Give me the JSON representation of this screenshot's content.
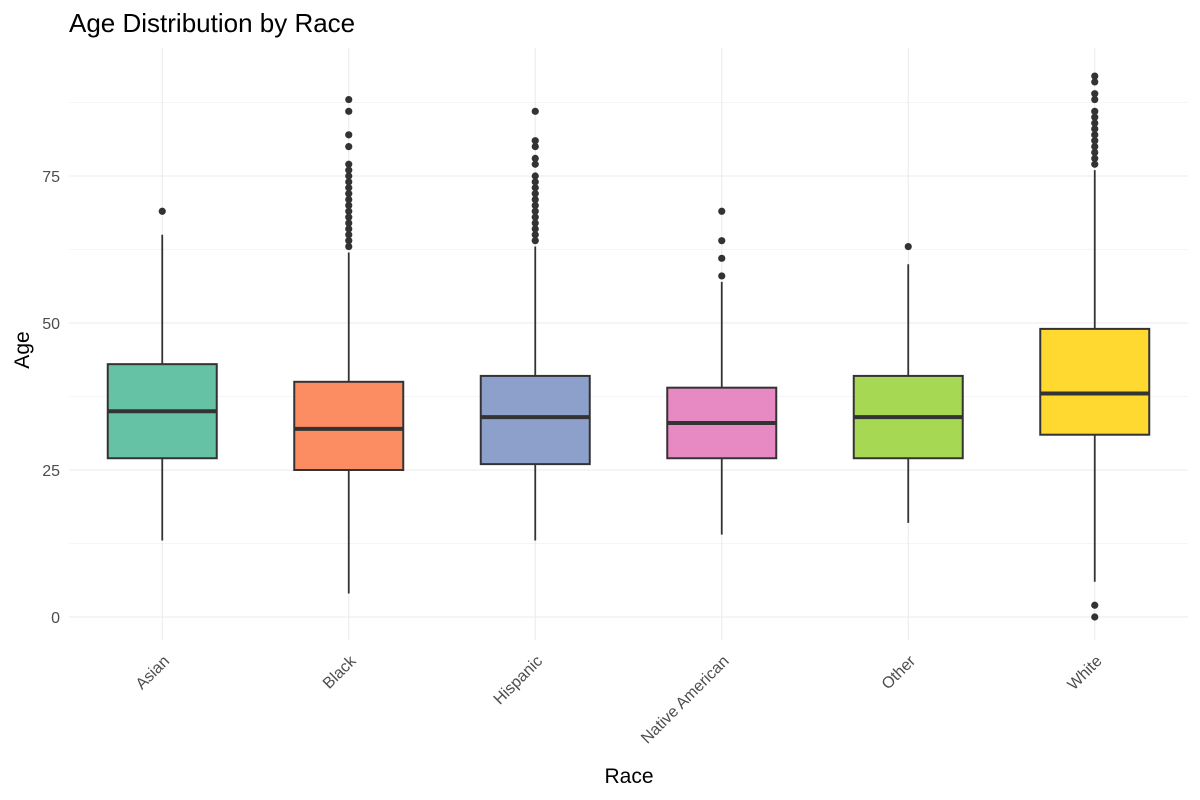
{
  "chart_data": {
    "type": "boxplot",
    "title": "Age Distribution by Race",
    "xlabel": "Race",
    "ylabel": "Age",
    "ylim": [
      -4,
      97
    ],
    "yticks": [
      0,
      25,
      50,
      75
    ],
    "grid": true,
    "legend": "none",
    "categories": [
      "Asian",
      "Black",
      "Hispanic",
      "Native American",
      "Other",
      "White"
    ],
    "boxes": [
      {
        "category": "Asian",
        "color": "#66c2a5",
        "whisker_low": 13,
        "q1": 27,
        "median": 35,
        "q3": 43,
        "whisker_high": 65,
        "outliers": [
          69
        ]
      },
      {
        "category": "Black",
        "color": "#fc8d62",
        "whisker_low": 4,
        "q1": 25,
        "median": 32,
        "q3": 40,
        "whisker_high": 62,
        "outliers": [
          63,
          64,
          65,
          66,
          67,
          68,
          69,
          70,
          71,
          72,
          73,
          74,
          75,
          76,
          77,
          80,
          82,
          86,
          88
        ]
      },
      {
        "category": "Hispanic",
        "color": "#8da0cb",
        "whisker_low": 13,
        "q1": 26,
        "median": 34,
        "q3": 41,
        "whisker_high": 63,
        "outliers": [
          64,
          65,
          66,
          67,
          68,
          69,
          70,
          71,
          72,
          73,
          74,
          75,
          77,
          78,
          80,
          81,
          86
        ]
      },
      {
        "category": "Native American",
        "color": "#e78ac3",
        "whisker_low": 14,
        "q1": 27,
        "median": 33,
        "q3": 39,
        "whisker_high": 57,
        "outliers": [
          58,
          61,
          64,
          69
        ]
      },
      {
        "category": "Other",
        "color": "#a6d854",
        "whisker_low": 16,
        "q1": 27,
        "median": 34,
        "q3": 41,
        "whisker_high": 60,
        "outliers": [
          63
        ]
      },
      {
        "category": "White",
        "color": "#ffd92f",
        "whisker_low": 6,
        "q1": 31,
        "median": 38,
        "q3": 49,
        "whisker_high": 76,
        "outliers": [
          0,
          2,
          77,
          78,
          79,
          80,
          81,
          82,
          83,
          84,
          85,
          86,
          88,
          89,
          91,
          92
        ]
      }
    ]
  }
}
